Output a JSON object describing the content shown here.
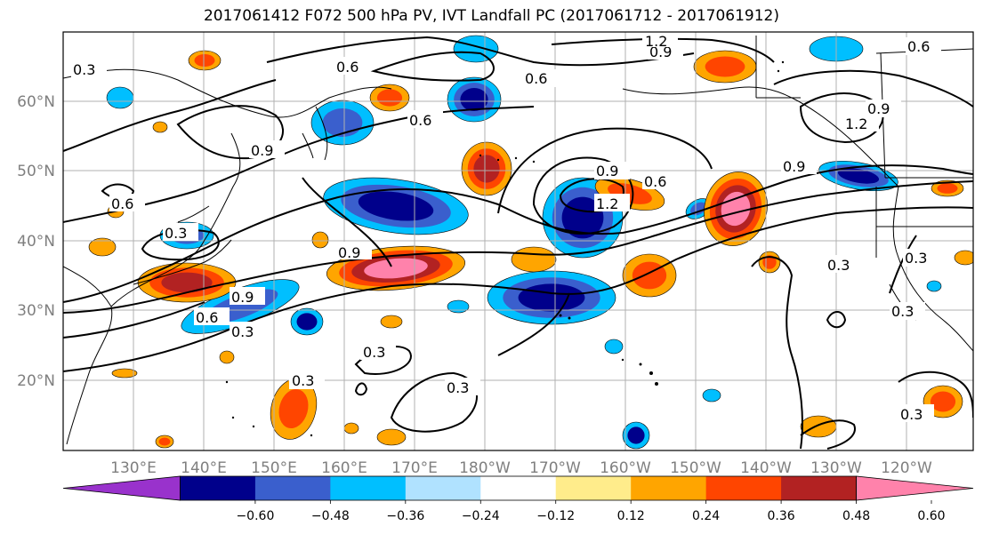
{
  "title": "2017061412 F072 500 hPa PV, IVT Landfall PC (2017061712 - 2017061912)",
  "map": {
    "lon_labels": [
      "130°E",
      "140°E",
      "150°E",
      "160°E",
      "170°E",
      "180°W",
      "170°W",
      "160°W",
      "150°W",
      "140°W",
      "130°W",
      "120°W"
    ],
    "lat_labels": [
      "60°N",
      "50°N",
      "40°N",
      "30°N",
      "20°N"
    ],
    "contour_labels": [
      "0.3",
      "0.6",
      "0.9",
      "1.2"
    ]
  },
  "colorbar": {
    "levels": [
      "−0.60",
      "−0.48",
      "−0.36",
      "−0.24",
      "−0.12",
      "0.12",
      "0.24",
      "0.36",
      "0.48",
      "0.60"
    ],
    "colors": [
      "#9932cc",
      "#00008b",
      "#3a5fcd",
      "#00bfff",
      "#b0e2ff",
      "#ffffff",
      "#ffec8b",
      "#ffa500",
      "#ff4500",
      "#b22222",
      "#ff82ab"
    ],
    "extend": "both"
  },
  "colors": {
    "blue_dark": "#00008b",
    "blue_med": "#3a5fcd",
    "blue_light": "#00bfff",
    "orange": "#ffa500",
    "red": "#ff4500",
    "dark_red": "#b22222",
    "pink": "#ff82ab"
  }
}
